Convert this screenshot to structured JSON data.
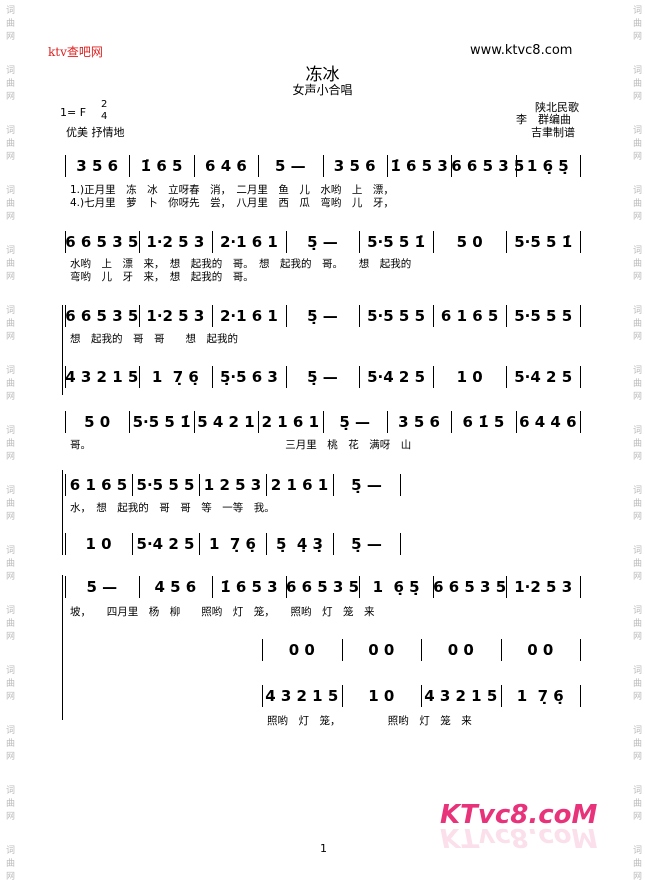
{
  "header": {
    "site": "ktv查吧网",
    "url": "www.ktvc8.com",
    "title": "冻冰",
    "subtitle": "女声小合唱",
    "key": "1= F",
    "time_top": "2",
    "time_bottom": "4",
    "tempo": "优美 抒情地",
    "credits": [
      "陕北民歌",
      "李　群编曲",
      "吉聿制谱"
    ],
    "watermark": "词曲网"
  },
  "systems": [
    {
      "measures": [
        "3 5 6",
        "1̇ 6 5",
        "6 4 6",
        "5 —",
        "3 5 6",
        "1̇ 6 5 3",
        "6 6 5 3 5",
        "1 6̣ 5̣"
      ],
      "lyrics": [
        "1.)正月里　冻　冰　立呀春　消，　二月里　鱼　儿　水哟　上　漂，",
        "4.)七月里　萝　卜　你呀先　尝，　八月里　西　瓜　弯哟　儿　牙，"
      ]
    },
    {
      "measures": [
        "6 6 5 3 5",
        "1·2 5 3",
        "2·1 6 1",
        "5̣ —",
        "5·5 5 1̇",
        "5 0",
        "5·5 5 1̇"
      ],
      "lyrics": [
        "水哟　上　漂　来，　想　起我的　哥。　想　起我的　哥。　　想　起我的",
        "弯哟　儿　牙　来，　想　起我的　哥。"
      ]
    },
    {
      "measures": [
        "6 6 5 3 5",
        "1·2 5 3",
        "2·1 6 1",
        "5̣ —",
        "5·5 5 5",
        "6 1 6 5",
        "5·5 5 5"
      ],
      "lyrics": [
        "想　起我的　哥　哥　　想　起我的"
      ]
    },
    {
      "measures": [
        "4 3 2 1 5",
        "1  7̣ 6̣",
        "5̣·5 6 3",
        "5̣ —",
        "5·4 2 5",
        "1 0",
        "5·4 2 5"
      ],
      "lyrics": []
    },
    {
      "measures": [
        "5 0",
        "5·5 5 1̇",
        "5 4 2 1",
        "2 1 6 1",
        "5̣ —",
        "3 5 6",
        "6 1̇ 5",
        "6 4 4 6"
      ],
      "lyrics": [
        "哥。　　　　　　　　　　　　　　　　　　　三月里　桃　花　满呀　山"
      ]
    },
    {
      "measures": [
        "6 1 6 5",
        "5·5 5 5",
        "1 2 5 3",
        "2 1 6 1",
        "5̣ —"
      ],
      "lyrics": [
        "水，　想　起我的　哥　哥　等　一等　我。"
      ]
    },
    {
      "measures": [
        "1 0",
        "5·4 2 5",
        "1  7̣ 6̣",
        "5̣  4̣ 3̣",
        "5̣ —"
      ],
      "lyrics": []
    },
    {
      "measures": [
        "5 —",
        "4 5 6",
        "1̇ 6 5 3",
        "6 6 5 3 5",
        "1  6̣ 5̣",
        "6 6 5 3 5",
        "1·2 5 3"
      ],
      "lyrics": [
        "坡，　　四月里　杨　柳　　照哟　灯　笼，　　照哟　灯　笼　来"
      ]
    },
    {
      "measures": [
        "0 0",
        "0 0",
        "0 0",
        "0 0"
      ],
      "lyrics": []
    },
    {
      "measures": [
        "4 3 2 1 5",
        "1 0",
        "4 3 2 1 5",
        "1  7̣ 6̣"
      ],
      "lyrics": [
        "照哟　灯　笼，　　　　　照哟　灯　笼　来"
      ]
    }
  ],
  "page_number": "1",
  "logo": "KTvc8.coM"
}
